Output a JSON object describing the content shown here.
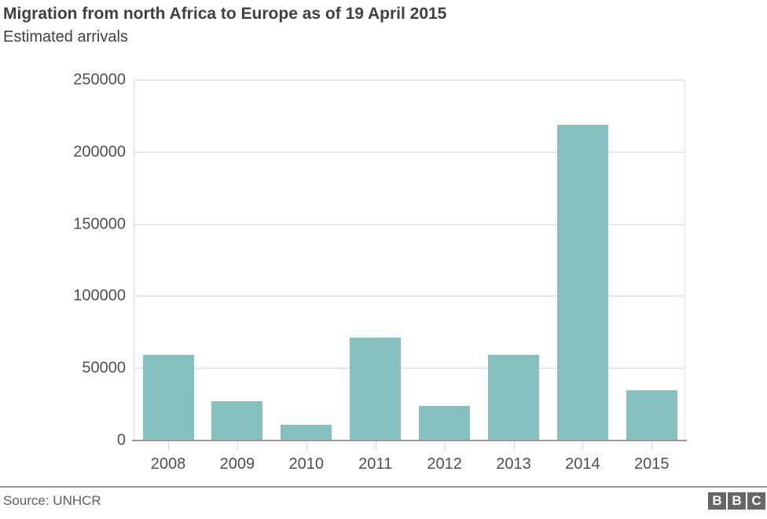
{
  "header": {
    "title": "Migration from north Africa to Europe as of 19 April 2015",
    "subtitle": "Estimated arrivals"
  },
  "footer": {
    "source": "Source: UNHCR",
    "logo_letters": [
      "B",
      "B",
      "C"
    ]
  },
  "colors": {
    "bar": "#86c1c1",
    "grid": "#e6e6e6",
    "axis": "#999999",
    "text": "#404040"
  },
  "y_ticks": [
    "250000",
    "200000",
    "150000",
    "100000",
    "50000",
    "0"
  ],
  "chart_data": {
    "type": "bar",
    "title": "Migration from north Africa to Europe as of 19 April 2015",
    "subtitle": "Estimated arrivals",
    "xlabel": "",
    "ylabel": "",
    "categories": [
      "2008",
      "2009",
      "2010",
      "2011",
      "2012",
      "2013",
      "2014",
      "2015"
    ],
    "values": [
      59600,
      27500,
      10800,
      71300,
      23800,
      59600,
      219000,
      34700
    ],
    "ylim": [
      0,
      250000
    ],
    "yticks": [
      0,
      50000,
      100000,
      150000,
      200000,
      250000
    ],
    "grid": true,
    "legend": null,
    "source": "Source: UNHCR"
  }
}
